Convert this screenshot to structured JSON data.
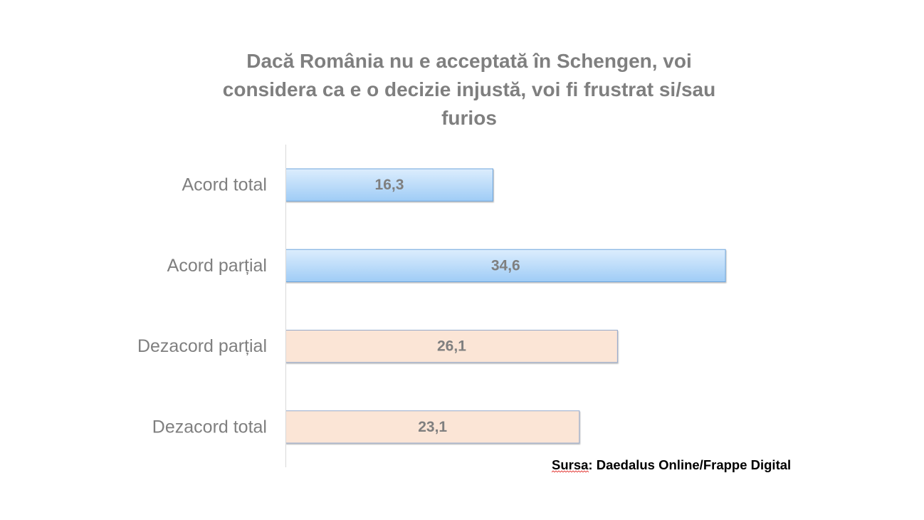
{
  "chart_data": {
    "type": "bar",
    "orientation": "horizontal",
    "title": "Dacă România nu e acceptată în Schengen, voi considera ca e o decizie injustă, voi fi frustrat si/sau furios",
    "xlabel": "",
    "ylabel": "",
    "categories": [
      "Acord total",
      "Acord parțial",
      "Dezacord parțial",
      "Dezacord total"
    ],
    "values": [
      16.3,
      34.6,
      26.1,
      23.1
    ],
    "data_labels": [
      "16,3",
      "34,6",
      "26,1",
      "23,1"
    ],
    "xlim": [
      0,
      40
    ],
    "grid": false,
    "bar_colors": [
      {
        "fill_top": "#dcedfd",
        "fill_bottom": "#9fccf6",
        "stroke": "#6fa6dc"
      },
      {
        "fill_top": "#dcedfd",
        "fill_bottom": "#9fccf6",
        "stroke": "#6fa6dc"
      },
      {
        "fill_top": "#fbe5d6",
        "fill_bottom": "#fbe5d6",
        "stroke": "#95a9cc"
      },
      {
        "fill_top": "#fbe5d6",
        "fill_bottom": "#fbe5d6",
        "stroke": "#95a9cc"
      }
    ]
  },
  "source_note": "Sursa: Daedalus Online/Frappe Digital"
}
